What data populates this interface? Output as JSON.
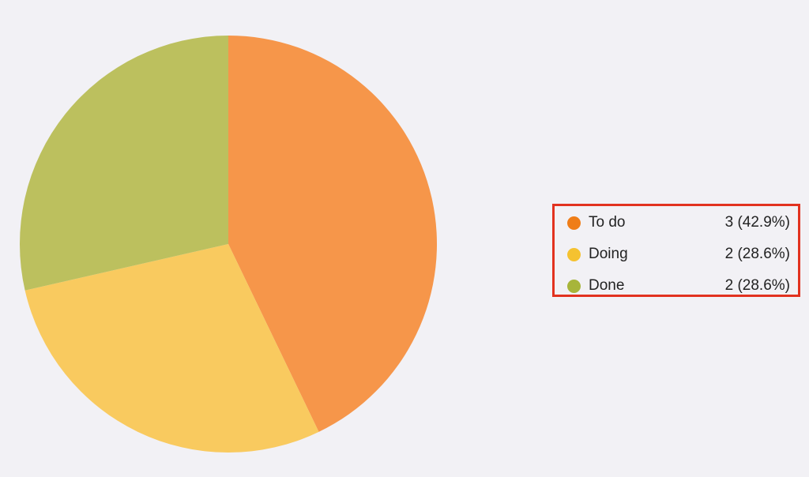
{
  "chart_data": {
    "type": "pie",
    "categories": [
      "To do",
      "Doing",
      "Done"
    ],
    "values": [
      3,
      2,
      2
    ],
    "percent_labels": [
      "3 (42.9%)",
      "2 (28.6%)",
      "2 (28.6%)"
    ],
    "legend_position": "right",
    "start_angle": "top, clockwise"
  },
  "colors": {
    "slices": [
      "#f6964a",
      "#f9ca5f",
      "#bcc05e"
    ],
    "legend_dots": [
      "#ef7d18",
      "#f5c230",
      "#a7b53a"
    ],
    "legend_border": "#e2321f",
    "background": "#f2f1f5"
  }
}
